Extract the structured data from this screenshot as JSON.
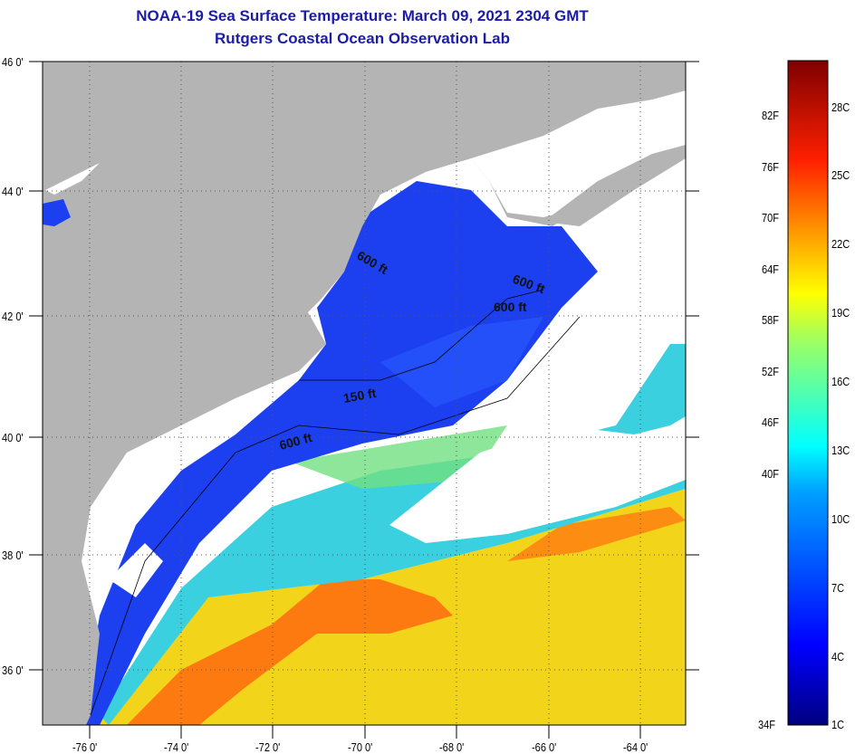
{
  "title": "NOAA-19 Sea Surface Temperature:  March 09, 2021 2304 GMT",
  "subtitle": "Rutgers Coastal Ocean Observation Lab",
  "lat_labels": [
    "46 0'",
    "44 0'",
    "42 0'",
    "40 0'",
    "38 0'",
    "36 0'"
  ],
  "lon_labels": [
    "-76 0'",
    "-74 0'",
    "-72 0'",
    "-70 0'",
    "-68 0'",
    "-66 0'",
    "-64 0'"
  ],
  "contours": [
    "600 ft",
    "600 ft",
    "600 ft",
    "150 ft",
    "600 ft"
  ],
  "colorbar": {
    "f_labels": [
      "82F",
      "76F",
      "70F",
      "64F",
      "58F",
      "52F",
      "46F",
      "40F",
      "34F"
    ],
    "c_labels": [
      "28C",
      "25C",
      "22C",
      "19C",
      "16C",
      "13C",
      "10C",
      "7C",
      "4C",
      "1C"
    ]
  },
  "colors": {
    "land": "#b4b4b4",
    "cloud": "#ffffff",
    "title": "#1c1ca8"
  }
}
